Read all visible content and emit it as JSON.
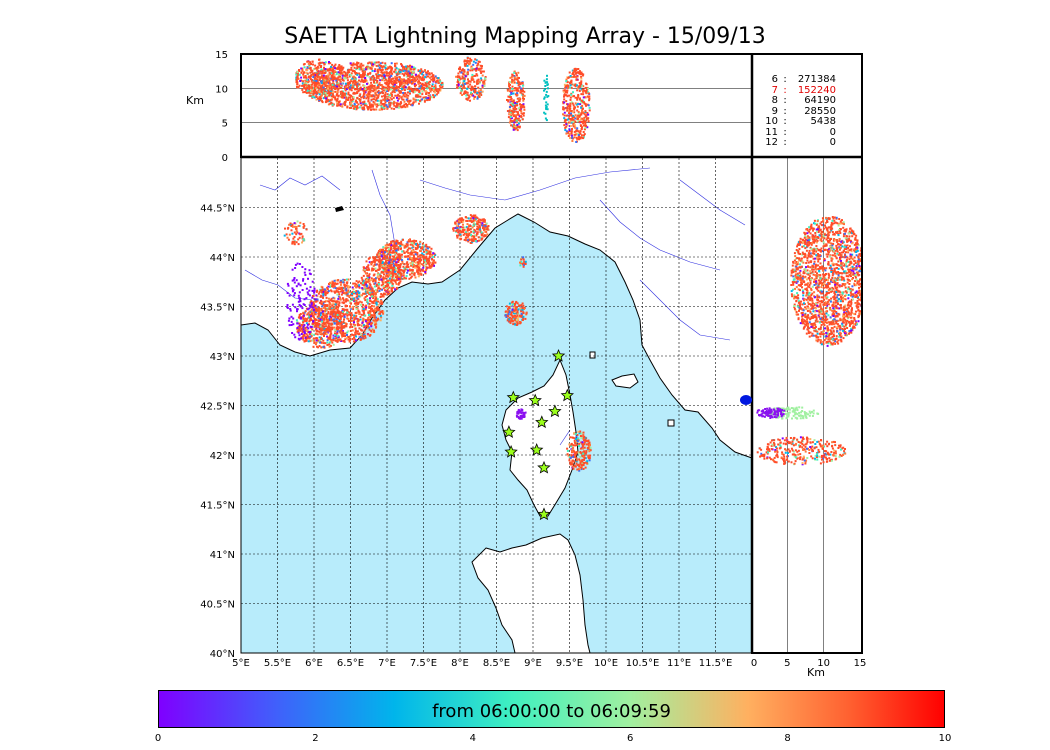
{
  "title": "SAETTA Lightning Mapping Array - 15/09/13",
  "map": {
    "lon_ticks": [
      "5°E",
      "5.5°E",
      "6°E",
      "6.5°E",
      "7°E",
      "7.5°E",
      "8°E",
      "8.5°E",
      "9°E",
      "9.5°E",
      "10°E",
      "10.5°E",
      "11°E",
      "11.5°E"
    ],
    "lat_ticks": [
      "44.5°N",
      "44°N",
      "43.5°N",
      "43°N",
      "42.5°N",
      "42°N",
      "41.5°N",
      "41°N",
      "40.5°N",
      "40°N"
    ],
    "lon_range": [
      5.0,
      12.0
    ],
    "lat_range": [
      40.0,
      45.0
    ],
    "sea_color": "#b8ecfb",
    "station_color": "#9bff1c",
    "stations": [
      [
        8.73,
        42.58
      ],
      [
        9.03,
        42.55
      ],
      [
        9.47,
        42.6
      ],
      [
        9.35,
        43.0
      ],
      [
        9.12,
        42.33
      ],
      [
        9.3,
        42.44
      ],
      [
        8.67,
        42.23
      ],
      [
        8.7,
        42.03
      ],
      [
        9.05,
        42.05
      ],
      [
        9.15,
        41.87
      ],
      [
        9.15,
        41.4
      ]
    ]
  },
  "altitude_panel": {
    "ylabel": "Km",
    "yticks": [
      "15",
      "10",
      "5",
      "0"
    ],
    "range": [
      0,
      15
    ]
  },
  "side_panel": {
    "xlabel": "Km",
    "xticks": [
      "0",
      "5",
      "10",
      "15"
    ],
    "range": [
      0,
      15
    ]
  },
  "stats": [
    {
      "n": "6",
      "v": "271384",
      "highlight": false
    },
    {
      "n": "7",
      "v": "152240",
      "highlight": true
    },
    {
      "n": "8",
      "v": "64190",
      "highlight": false
    },
    {
      "n": "9",
      "v": "28550",
      "highlight": false
    },
    {
      "n": "10",
      "v": "5438",
      "highlight": false
    },
    {
      "n": "11",
      "v": "0",
      "highlight": false
    },
    {
      "n": "12",
      "v": "0",
      "highlight": false
    }
  ],
  "colorbar": {
    "label": "from 06:00:00 to 06:09:59",
    "ticks": [
      "0",
      "2",
      "4",
      "6",
      "8",
      "10"
    ],
    "range": [
      0,
      10
    ]
  }
}
